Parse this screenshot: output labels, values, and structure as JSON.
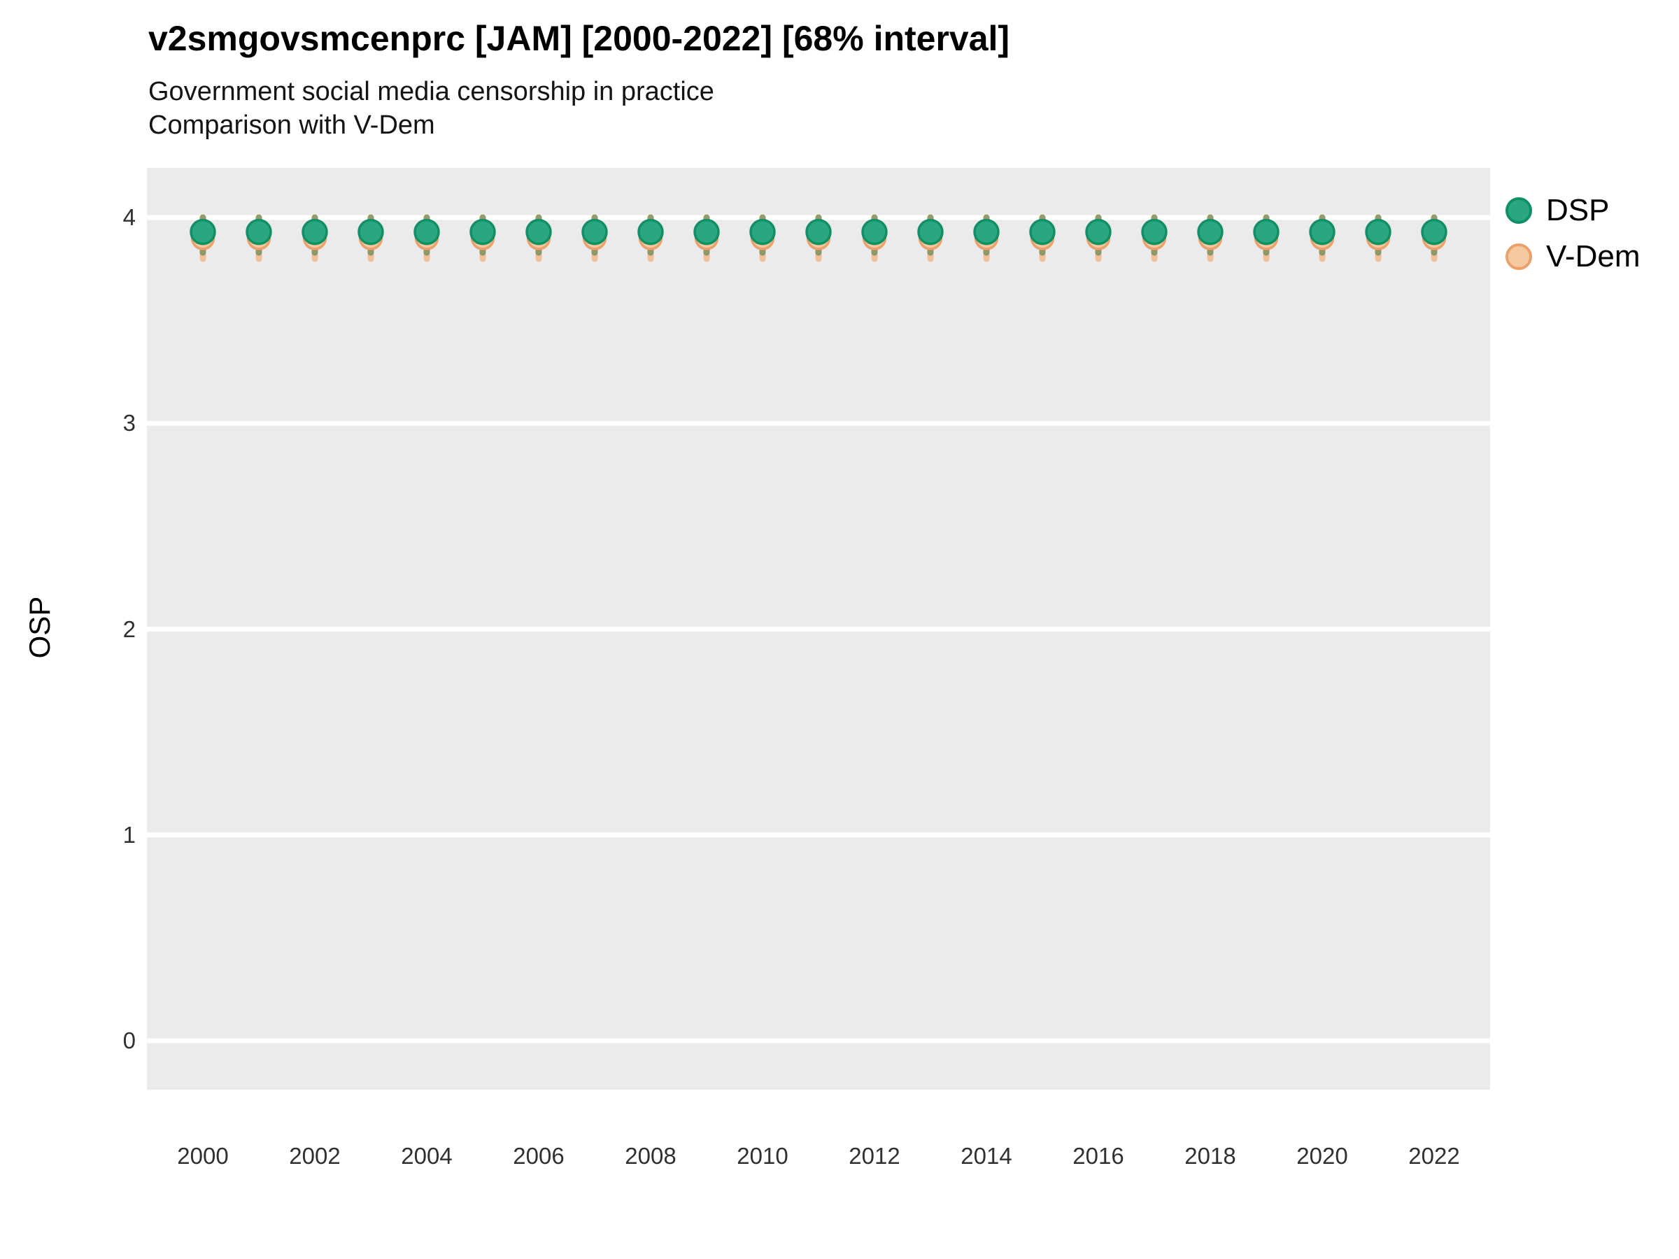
{
  "header": {
    "title": "v2smgovsmcenprc [JAM] [2000-2022] [68% interval]",
    "subtitle_line1": "Government social media censorship in practice",
    "subtitle_line2": "Comparison with V-Dem"
  },
  "y_axis": {
    "label": "OSP",
    "tick_labels": [
      "4",
      "3",
      "2",
      "1",
      "0"
    ]
  },
  "x_axis": {
    "tick_labels": [
      "2000",
      "2002",
      "2004",
      "2006",
      "2008",
      "2010",
      "2012",
      "2014",
      "2016",
      "2018",
      "2020",
      "2022"
    ]
  },
  "legend": {
    "items": [
      {
        "label": "DSP",
        "fill": "#2aa681",
        "stroke": "#0f9066"
      },
      {
        "label": "V-Dem",
        "fill": "#f5c9a1",
        "stroke": "#eca06a"
      }
    ]
  },
  "colors": {
    "panel_background": "#EBEBEB",
    "gridline": "#FFFFFF",
    "dsp_fill": "#2aa681",
    "dsp_edge": "#0f9066",
    "dsp_interval": "rgba(60,120,70,0.55)",
    "vdem_fill": "#f5c9a1",
    "vdem_edge": "#eca06a",
    "vdem_interval": "rgba(242,156,86,0.55)"
  },
  "chart_data": {
    "type": "scatter",
    "title": "v2smgovsmcenprc [JAM] [2000-2022] [68% interval]",
    "subtitle": [
      "Government social media censorship in practice",
      "Comparison with V-Dem"
    ],
    "xlabel": "",
    "ylabel": "OSP",
    "interval_level": "68%",
    "grid": "horizontal-only",
    "legend_position": "right",
    "ylim": [
      -0.24,
      4.24
    ],
    "yticks": [
      0,
      1,
      2,
      3,
      4
    ],
    "xticks": [
      2000,
      2002,
      2004,
      2006,
      2008,
      2010,
      2012,
      2014,
      2016,
      2018,
      2020,
      2022
    ],
    "x": [
      2000,
      2001,
      2002,
      2003,
      2004,
      2005,
      2006,
      2007,
      2008,
      2009,
      2010,
      2011,
      2012,
      2013,
      2014,
      2015,
      2016,
      2017,
      2018,
      2019,
      2020,
      2021,
      2022
    ],
    "series": [
      {
        "name": "DSP",
        "values": [
          3.93,
          3.93,
          3.93,
          3.93,
          3.93,
          3.93,
          3.93,
          3.93,
          3.93,
          3.93,
          3.93,
          3.93,
          3.93,
          3.93,
          3.93,
          3.93,
          3.93,
          3.93,
          3.93,
          3.93,
          3.93,
          3.93,
          3.93
        ],
        "lo": [
          3.83,
          3.83,
          3.83,
          3.83,
          3.83,
          3.83,
          3.83,
          3.83,
          3.83,
          3.83,
          3.83,
          3.83,
          3.83,
          3.83,
          3.83,
          3.83,
          3.83,
          3.83,
          3.83,
          3.83,
          3.83,
          3.83,
          3.83
        ],
        "hi": [
          4.0,
          4.0,
          4.0,
          4.0,
          4.0,
          4.0,
          4.0,
          4.0,
          4.0,
          4.0,
          4.0,
          4.0,
          4.0,
          4.0,
          4.0,
          4.0,
          4.0,
          4.0,
          4.0,
          4.0,
          4.0,
          4.0,
          4.0
        ]
      },
      {
        "name": "V-Dem",
        "values": [
          3.9,
          3.9,
          3.9,
          3.9,
          3.9,
          3.9,
          3.9,
          3.9,
          3.9,
          3.9,
          3.9,
          3.9,
          3.9,
          3.9,
          3.9,
          3.9,
          3.9,
          3.9,
          3.9,
          3.9,
          3.9,
          3.9,
          3.9
        ],
        "lo": [
          3.8,
          3.8,
          3.8,
          3.8,
          3.8,
          3.8,
          3.8,
          3.8,
          3.8,
          3.8,
          3.8,
          3.8,
          3.8,
          3.8,
          3.8,
          3.8,
          3.8,
          3.8,
          3.8,
          3.8,
          3.8,
          3.8,
          3.8
        ],
        "hi": [
          4.0,
          4.0,
          4.0,
          4.0,
          4.0,
          4.0,
          4.0,
          4.0,
          4.0,
          4.0,
          4.0,
          4.0,
          4.0,
          4.0,
          4.0,
          4.0,
          4.0,
          4.0,
          4.0,
          4.0,
          4.0,
          4.0,
          4.0
        ]
      }
    ]
  }
}
